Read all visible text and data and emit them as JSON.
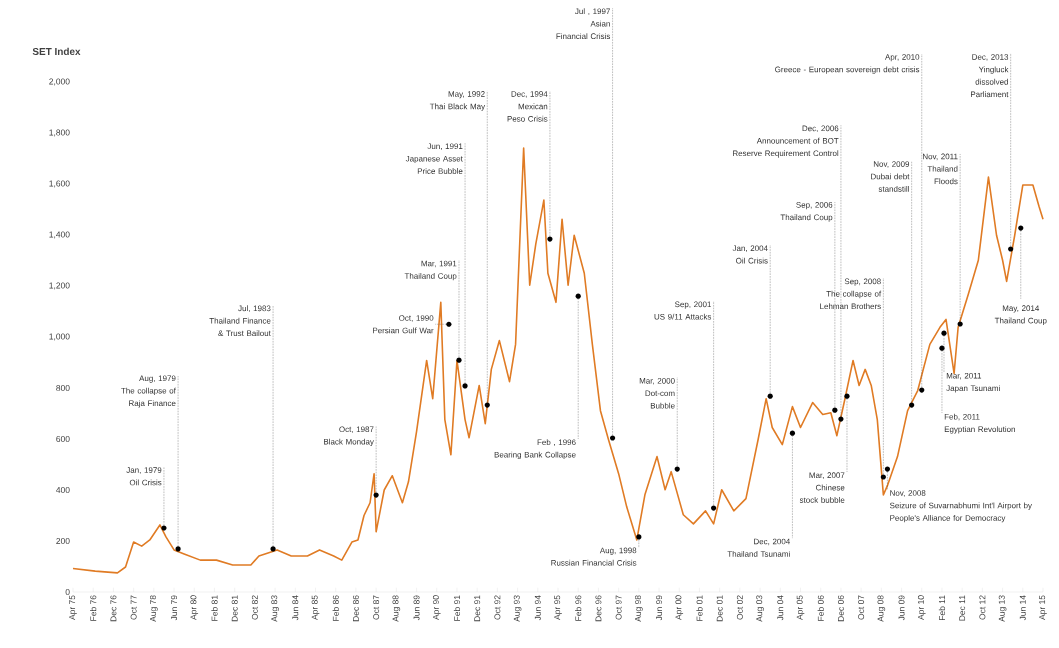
{
  "chart_data": {
    "type": "line",
    "ylabel": "SET Index",
    "color": "#e07b24",
    "x": [
      "1975-04",
      "1976-03",
      "1977-02",
      "1977-06",
      "1977-10",
      "1978-02",
      "1978-06",
      "1978-11",
      "1979-02",
      "1979-06",
      "1979-11",
      "1980-07",
      "1981-03",
      "1981-11",
      "1982-08",
      "1982-12",
      "1983-09",
      "1984-04",
      "1984-12",
      "1985-06",
      "1986-01",
      "1986-05",
      "1986-10",
      "1987-01",
      "1987-04",
      "1987-07",
      "1987-09",
      "1987-10",
      "1988-02",
      "1988-06",
      "1988-11",
      "1989-02",
      "1989-06",
      "1989-11",
      "1990-02",
      "1990-06",
      "1990-08",
      "1990-11",
      "1991-02",
      "1991-06",
      "1991-08",
      "1992-01",
      "1992-04",
      "1992-07",
      "1992-11",
      "1993-04",
      "1993-07",
      "1993-11",
      "1994-02",
      "1994-05",
      "1994-09",
      "1994-11",
      "1995-03",
      "1995-06",
      "1995-09",
      "1995-12",
      "1996-05",
      "1996-09",
      "1997-01",
      "1997-05",
      "1997-10",
      "1998-02",
      "1998-07",
      "1998-11",
      "1999-05",
      "1999-09",
      "1999-12",
      "2000-06",
      "2000-11",
      "2001-05",
      "2001-09",
      "2002-01",
      "2002-07",
      "2003-01",
      "2003-07",
      "2003-11",
      "2004-02",
      "2004-07",
      "2004-12",
      "2005-04",
      "2005-10",
      "2006-03",
      "2006-07",
      "2006-10",
      "2007-02",
      "2007-06",
      "2007-09",
      "2007-12",
      "2008-03",
      "2008-06",
      "2008-09",
      "2008-11",
      "2009-04",
      "2009-09",
      "2010-02",
      "2010-08",
      "2011-01",
      "2011-04",
      "2011-08",
      "2011-10",
      "2012-03",
      "2012-08",
      "2013-01",
      "2013-05",
      "2013-08",
      "2013-10",
      "2014-02",
      "2014-06",
      "2014-11",
      "2015-02",
      "2015-04"
    ],
    "values": [
      92,
      82,
      75,
      98,
      196,
      180,
      204,
      263,
      216,
      165,
      149,
      125,
      125,
      106,
      106,
      141,
      165,
      141,
      141,
      165,
      141,
      125,
      196,
      204,
      300,
      350,
      464,
      236,
      400,
      456,
      350,
      432,
      629,
      908,
      758,
      1136,
      676,
      538,
      908,
      676,
      605,
      810,
      660,
      873,
      986,
      825,
      971,
      1741,
      1203,
      1364,
      1537,
      1250,
      1136,
      1462,
      1203,
      1399,
      1250,
      971,
      711,
      597,
      464,
      334,
      204,
      381,
      531,
      401,
      472,
      303,
      267,
      318,
      267,
      401,
      318,
      366,
      597,
      758,
      645,
      578,
      727,
      645,
      743,
      696,
      703,
      613,
      758,
      908,
      810,
      873,
      810,
      676,
      381,
      417,
      531,
      711,
      790,
      971,
      1038,
      1069,
      857,
      1038,
      1167,
      1301,
      1627,
      1399,
      1301,
      1218,
      1399,
      1596,
      1596,
      1513,
      1462
    ],
    "xlim": [
      "1975-04",
      "2015-04"
    ],
    "xticks": [
      {
        "value": "1975-04",
        "label": "Apr 75"
      },
      {
        "value": "1976-02",
        "label": "Feb 76"
      },
      {
        "value": "1976-12",
        "label": "Dec 76"
      },
      {
        "value": "1977-10",
        "label": "Oct 77"
      },
      {
        "value": "1978-08",
        "label": "Aug 78"
      },
      {
        "value": "1979-06",
        "label": "Jun 79"
      },
      {
        "value": "1980-04",
        "label": "Apr 80"
      },
      {
        "value": "1981-02",
        "label": "Feb 81"
      },
      {
        "value": "1981-12",
        "label": "Dec 81"
      },
      {
        "value": "1982-10",
        "label": "Oct 82"
      },
      {
        "value": "1983-08",
        "label": "Aug 83"
      },
      {
        "value": "1984-06",
        "label": "Jun 84"
      },
      {
        "value": "1985-04",
        "label": "Apr 85"
      },
      {
        "value": "1986-02",
        "label": "Feb 86"
      },
      {
        "value": "1986-12",
        "label": "Dec 86"
      },
      {
        "value": "1987-10",
        "label": "Oct 87"
      },
      {
        "value": "1988-08",
        "label": "Aug 88"
      },
      {
        "value": "1989-06",
        "label": "Jun 89"
      },
      {
        "value": "1990-04",
        "label": "Apr 90"
      },
      {
        "value": "1991-02",
        "label": "Feb 91"
      },
      {
        "value": "1991-12",
        "label": "Dec 91"
      },
      {
        "value": "1992-10",
        "label": "Oct 92"
      },
      {
        "value": "1993-08",
        "label": "Aug 93"
      },
      {
        "value": "1994-06",
        "label": "Jun 94"
      },
      {
        "value": "1995-04",
        "label": "Apr 95"
      },
      {
        "value": "1996-02",
        "label": "Feb 96"
      },
      {
        "value": "1996-12",
        "label": "Dec 96"
      },
      {
        "value": "1997-10",
        "label": "Oct 97"
      },
      {
        "value": "1998-08",
        "label": "Aug 98"
      },
      {
        "value": "1999-06",
        "label": "Jun 99"
      },
      {
        "value": "2000-04",
        "label": "Apr 00"
      },
      {
        "value": "2001-02",
        "label": "Feb 01"
      },
      {
        "value": "2001-12",
        "label": "Dec 01"
      },
      {
        "value": "2002-10",
        "label": "Oct 02"
      },
      {
        "value": "2003-08",
        "label": "Aug 03"
      },
      {
        "value": "2004-06",
        "label": "Jun 04"
      },
      {
        "value": "2005-04",
        "label": "Apr 05"
      },
      {
        "value": "2006-02",
        "label": "Feb 06"
      },
      {
        "value": "2006-12",
        "label": "Dec 06"
      },
      {
        "value": "2007-10",
        "label": "Oct 07"
      },
      {
        "value": "2008-08",
        "label": "Aug 08"
      },
      {
        "value": "2009-06",
        "label": "Jun 09"
      },
      {
        "value": "2010-04",
        "label": "Apr 10"
      },
      {
        "value": "2011-02",
        "label": "Feb 11"
      },
      {
        "value": "2011-12",
        "label": "Dec 11"
      },
      {
        "value": "2012-10",
        "label": "Oct 12"
      },
      {
        "value": "2013-08",
        "label": "Aug 13"
      },
      {
        "value": "2014-06",
        "label": "Jun 14"
      },
      {
        "value": "2015-04",
        "label": "Apr 15"
      }
    ],
    "ylim": [
      0,
      2000
    ],
    "yticks": [
      0,
      200,
      400,
      600,
      800,
      {
        "value": 1000,
        "label": "1,000"
      },
      {
        "value": 1200,
        "label": "1,200"
      },
      {
        "value": 1400,
        "label": "1,400"
      },
      {
        "value": 1600,
        "label": "1,600"
      },
      {
        "value": 1800,
        "label": "1,800"
      },
      {
        "value": 2000,
        "label": "2,000"
      }
    ],
    "annotations": [
      {
        "text": "Jan, 1979",
        "x": "1979-01",
        "y": 251
      },
      "Oil Crisis",
      {
        "text": "Aug, 1979",
        "x": "1979-08",
        "y": 169
      },
      "The collapse of Raja Finance",
      {
        "text": "Jul, 1983",
        "x": "1983-07",
        "y": 169
      },
      "Thailand Finance & Trust Bailout",
      {
        "text": "Oct, 1987",
        "x": "1987-10",
        "y": 380
      },
      "Black Monday",
      {
        "text": "Oct, 1990",
        "x": "1990-10",
        "y": 1050
      },
      "Persian Gulf War",
      {
        "text": "Mar, 1991",
        "x": "1991-03",
        "y": 909
      },
      "Thailand Coup",
      {
        "text": "Jun, 1991",
        "x": "1991-06",
        "y": 808
      },
      "Japanese Asset Price Bubble",
      {
        "text": "May, 1992",
        "x": "1992-05",
        "y": 733
      },
      "Thai Black May",
      {
        "text": "Dec, 1994",
        "x": "1994-12",
        "y": 1384
      },
      "Mexican Peso Crisis",
      {
        "text": "Feb , 1996",
        "x": "1996-02",
        "y": 1160
      },
      "Bearing Bank Collapse",
      {
        "text": "Jul , 1997",
        "x": "1997-07",
        "y": 604
      },
      "Asian Financial Crisis",
      {
        "text": "Aug, 1998",
        "x": "1998-08",
        "y": 216
      },
      "Russian Financial Crisis",
      {
        "text": "Mar, 2000",
        "x": "2000-03",
        "y": 482
      },
      "Dot-com Bubble",
      {
        "text": "Sep, 2001",
        "x": "2001-09",
        "y": 329
      },
      "US 9/11 Attacks",
      {
        "text": "Jan, 2004",
        "x": "2004-01",
        "y": 768
      },
      "Oil Crisis",
      {
        "text": "Dec, 2004",
        "x": "2004-12",
        "y": 623
      },
      "Thailand Tsunami",
      {
        "text": "Sep, 2006",
        "x": "2006-09",
        "y": 713
      },
      "Thailand Coup",
      {
        "text": "Dec, 2006",
        "x": "2006-12",
        "y": 678
      },
      "Announcement of BOT Reserve Requirement Control",
      {
        "text": "Mar, 2007",
        "x": "2007-03",
        "y": 768
      },
      "Chinese stock bubble",
      {
        "text": "Sep, 2008",
        "x": "2008-09",
        "y": 451
      },
      "The collapse of Lehman Brothers",
      {
        "text": "Nov, 2008",
        "x": "2008-11",
        "y": 482
      },
      "Seizure of Suvarnabhumi Int'l Airport by People's Alliance for Democracy",
      {
        "text": "Nov, 2009",
        "x": "2009-11",
        "y": 733
      },
      "Dubai debt standstill",
      {
        "text": "Apr, 2010",
        "x": "2010-04",
        "y": 792
      },
      "Greece - European sovereign debt crisis",
      {
        "text": "Feb, 2011",
        "x": "2011-02",
        "y": 956
      },
      "Egyptian Revolution",
      {
        "text": "Mar, 2011",
        "x": "2011-03",
        "y": 1015
      },
      "Japan Tsunami",
      {
        "text": "Nov, 2011",
        "x": "2011-11",
        "y": 1051
      },
      "Thailand Floods",
      {
        "text": "Dec, 2013",
        "x": "2013-12",
        "y": 1345
      },
      "Yingluck dissolved Parliament",
      {
        "text": "May, 2014",
        "x": "2014-05",
        "y": 1427
      },
      "Thailand Coup"
    ]
  }
}
